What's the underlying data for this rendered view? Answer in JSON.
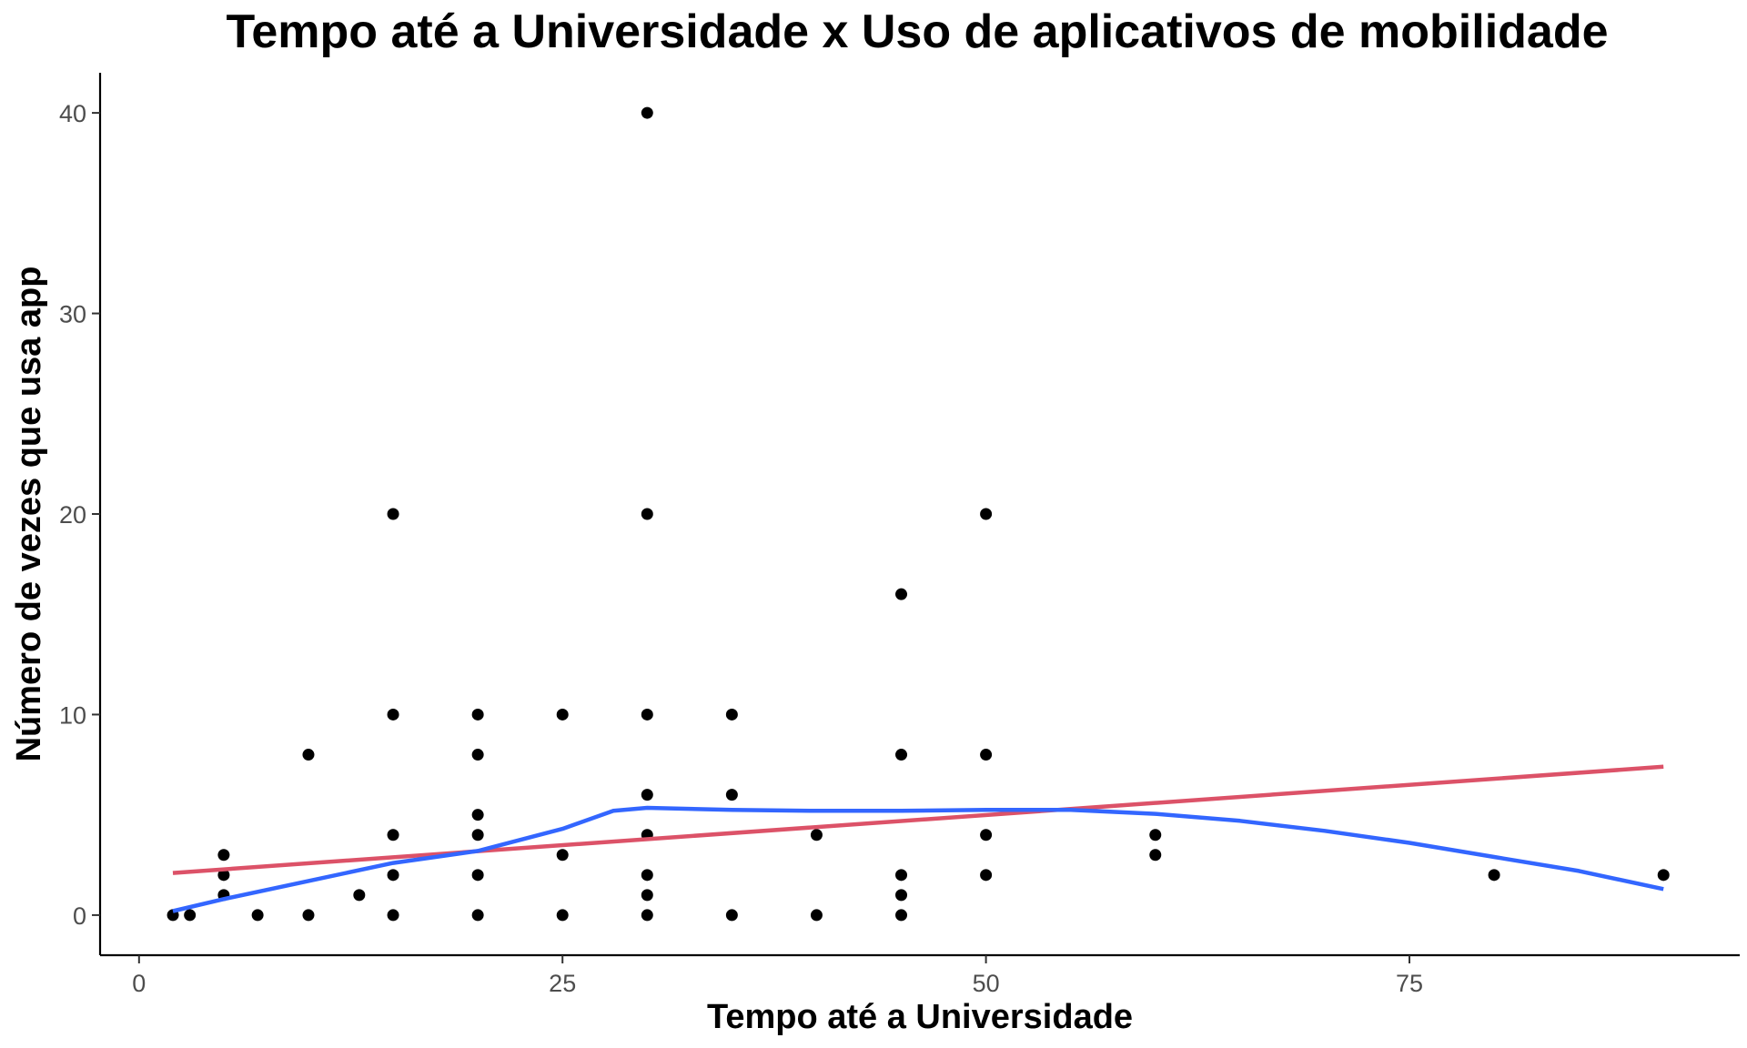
{
  "chart_data": {
    "type": "scatter",
    "title": "Tempo até a Universidade x Uso de aplicativos de mobilidade",
    "xlabel": "Tempo até a Universidade",
    "ylabel": "Número de vezes que usa app",
    "xlim": [
      -2.3,
      94.5
    ],
    "ylim": [
      -2,
      42
    ],
    "x_ticks": [
      0,
      25,
      50,
      75
    ],
    "y_ticks": [
      0,
      10,
      20,
      30,
      40
    ],
    "grid": false,
    "points": [
      [
        2,
        0
      ],
      [
        3,
        0
      ],
      [
        5,
        1
      ],
      [
        5,
        2
      ],
      [
        5,
        3
      ],
      [
        7,
        0
      ],
      [
        10,
        0
      ],
      [
        10,
        8
      ],
      [
        13,
        1
      ],
      [
        15,
        0
      ],
      [
        15,
        2
      ],
      [
        15,
        4
      ],
      [
        15,
        10
      ],
      [
        15,
        20
      ],
      [
        20,
        0
      ],
      [
        20,
        2
      ],
      [
        20,
        4
      ],
      [
        20,
        5
      ],
      [
        20,
        8
      ],
      [
        20,
        10
      ],
      [
        25,
        0
      ],
      [
        25,
        3
      ],
      [
        25,
        10
      ],
      [
        30,
        0
      ],
      [
        30,
        1
      ],
      [
        30,
        2
      ],
      [
        30,
        4
      ],
      [
        30,
        6
      ],
      [
        30,
        10
      ],
      [
        30,
        20
      ],
      [
        30,
        40
      ],
      [
        35,
        0
      ],
      [
        35,
        6
      ],
      [
        35,
        10
      ],
      [
        40,
        0
      ],
      [
        40,
        4
      ],
      [
        45,
        0
      ],
      [
        45,
        1
      ],
      [
        45,
        2
      ],
      [
        45,
        8
      ],
      [
        45,
        16
      ],
      [
        50,
        2
      ],
      [
        50,
        4
      ],
      [
        50,
        8
      ],
      [
        50,
        20
      ],
      [
        60,
        3
      ],
      [
        60,
        4
      ],
      [
        80,
        2
      ],
      [
        90,
        2
      ]
    ],
    "series": [
      {
        "type": "line",
        "color": "#dc5268",
        "x": [
          2,
          90
        ],
        "y": [
          2.1,
          7.4
        ]
      },
      {
        "type": "line",
        "color": "#3366ff",
        "x": [
          2,
          5,
          10,
          15,
          20,
          25,
          28,
          30,
          35,
          40,
          45,
          50,
          55,
          60,
          65,
          70,
          75,
          80,
          85,
          90
        ],
        "y": [
          0.2,
          0.8,
          1.7,
          2.6,
          3.2,
          4.3,
          5.2,
          5.35,
          5.25,
          5.2,
          5.2,
          5.25,
          5.25,
          5.05,
          4.7,
          4.2,
          3.6,
          2.9,
          2.2,
          1.3
        ]
      }
    ],
    "point_color": "#000000"
  }
}
